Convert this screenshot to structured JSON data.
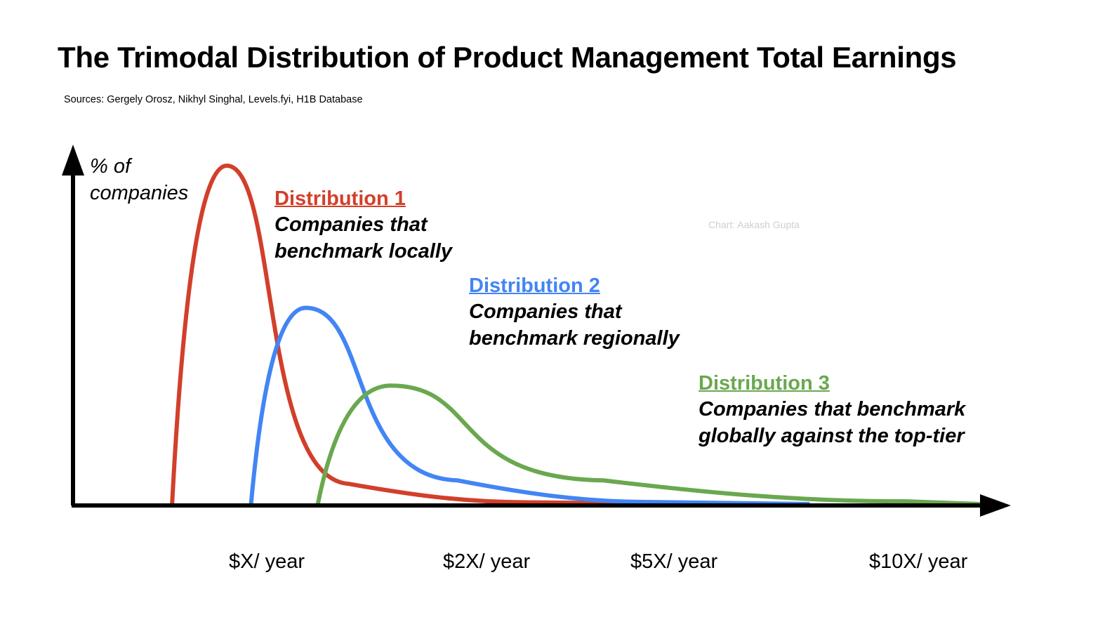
{
  "chart_data": {
    "type": "line",
    "title": "The Trimodal Distribution of Product Management Total Earnings",
    "subtitle": "Sources: Gergely Orosz, Nikhyl Singhal, Levels.fyi, H1B Database",
    "credit": "Chart: Aakash Gupta",
    "ylabel": "% of companies",
    "ylabel_lines": [
      "% of",
      "companies"
    ],
    "xlabel": "",
    "x_ticks": [
      "$X/ year",
      "$2X/ year",
      "$5X/ year",
      "$10X/ year"
    ],
    "series": [
      {
        "name": "Distribution 1",
        "description_lines": [
          "Companies that",
          "benchmark locally"
        ],
        "color": "#d23f2a",
        "x": [
          0.55,
          1.0,
          2.0,
          3.5,
          5.0
        ],
        "values": [
          0,
          100,
          6,
          0.5,
          0
        ]
      },
      {
        "name": "Distribution 2",
        "description_lines": [
          "Companies that",
          "benchmark regionally"
        ],
        "color": "#4285f4",
        "x": [
          1.2,
          1.65,
          2.9,
          4.5,
          5.8
        ],
        "values": [
          0,
          58,
          7,
          0.6,
          0
        ]
      },
      {
        "name": "Distribution 3",
        "description_lines": [
          "Companies that benchmark",
          "globally against the top-tier"
        ],
        "color": "#6aa84f",
        "x": [
          1.75,
          2.35,
          4.1,
          6.6,
          7.2
        ],
        "values": [
          0,
          35,
          7,
          0.8,
          0
        ]
      }
    ]
  }
}
